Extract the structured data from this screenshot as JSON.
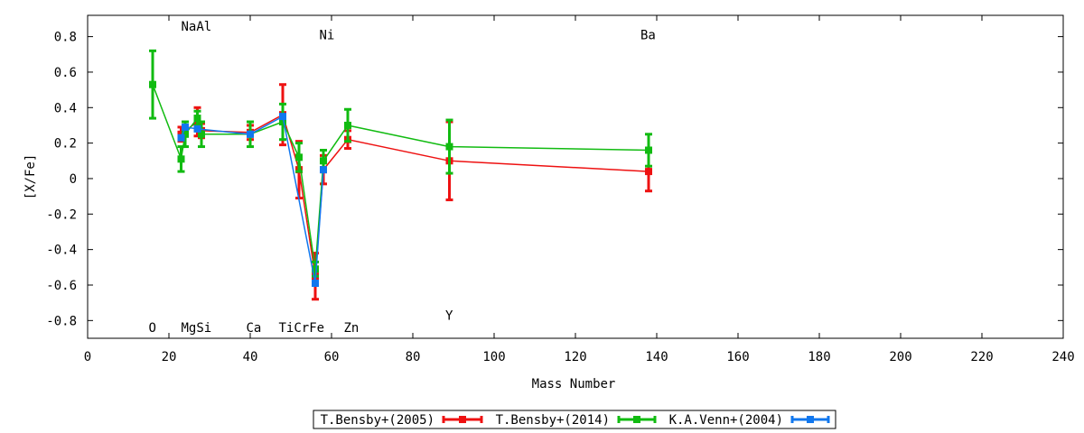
{
  "chart_data": {
    "type": "line",
    "xlabel": "Mass Number",
    "ylabel": "[X/Fe]",
    "xlim": [
      0,
      240
    ],
    "ylim": [
      -0.9,
      0.92
    ],
    "xticks": [
      0,
      20,
      40,
      60,
      80,
      100,
      120,
      140,
      160,
      180,
      200,
      220,
      240
    ],
    "yticks": [
      -0.8,
      -0.6,
      -0.4,
      -0.2,
      0,
      0.2,
      0.4,
      0.6,
      0.8
    ],
    "grid": false,
    "legend_position": "bottom-center",
    "series": [
      {
        "name": "T.Bensby+(2005)",
        "color": "#ee1111",
        "points": [
          {
            "x": 23,
            "y": 0.25,
            "err": 0.04
          },
          {
            "x": 24,
            "y": 0.27,
            "err": 0.03
          },
          {
            "x": 27,
            "y": 0.32,
            "err": 0.08
          },
          {
            "x": 28,
            "y": 0.27,
            "err": 0.04
          },
          {
            "x": 40,
            "y": 0.26,
            "err": 0.04
          },
          {
            "x": 48,
            "y": 0.36,
            "err": 0.17
          },
          {
            "x": 52,
            "y": 0.05,
            "err": 0.16
          },
          {
            "x": 56,
            "y": -0.55,
            "err": 0.13
          },
          {
            "x": 58,
            "y": 0.05,
            "err": 0.08
          },
          {
            "x": 64,
            "y": 0.22,
            "err": 0.05
          },
          {
            "x": 89,
            "y": 0.1,
            "err": 0.22
          },
          {
            "x": 138,
            "y": 0.04,
            "err": 0.11
          }
        ]
      },
      {
        "name": "T.Bensby+(2014)",
        "color": "#11bb11",
        "points": [
          {
            "x": 16,
            "y": 0.53,
            "err": 0.19
          },
          {
            "x": 23,
            "y": 0.11,
            "err": 0.07
          },
          {
            "x": 24,
            "y": 0.25,
            "err": 0.07
          },
          {
            "x": 27,
            "y": 0.34,
            "err": 0.04
          },
          {
            "x": 28,
            "y": 0.25,
            "err": 0.07
          },
          {
            "x": 40,
            "y": 0.25,
            "err": 0.07
          },
          {
            "x": 48,
            "y": 0.32,
            "err": 0.1
          },
          {
            "x": 52,
            "y": 0.12,
            "err": 0.08
          },
          {
            "x": 56,
            "y": -0.51,
            "err": 0.04
          },
          {
            "x": 58,
            "y": 0.1,
            "err": 0.06
          },
          {
            "x": 64,
            "y": 0.3,
            "err": 0.09
          },
          {
            "x": 89,
            "y": 0.18,
            "err": 0.15
          },
          {
            "x": 138,
            "y": 0.16,
            "err": 0.09
          }
        ]
      },
      {
        "name": "K.A.Venn+(2004)",
        "color": "#1177ee",
        "points": [
          {
            "x": 23,
            "y": 0.23,
            "err": 0
          },
          {
            "x": 24,
            "y": 0.29,
            "err": 0
          },
          {
            "x": 27,
            "y": 0.28,
            "err": 0
          },
          {
            "x": 40,
            "y": 0.25,
            "err": 0
          },
          {
            "x": 48,
            "y": 0.35,
            "err": 0
          },
          {
            "x": 56,
            "y": -0.59,
            "err": 0
          },
          {
            "x": 58,
            "y": 0.05,
            "err": 0
          }
        ]
      }
    ],
    "element_labels": [
      {
        "text": "NaAl",
        "x": 23,
        "y": 0.86
      },
      {
        "text": "Ni",
        "x": 57,
        "y": 0.81
      },
      {
        "text": "Ba",
        "x": 136,
        "y": 0.81
      },
      {
        "text": "O",
        "x": 15,
        "y": -0.84
      },
      {
        "text": "MgSi",
        "x": 23,
        "y": -0.84
      },
      {
        "text": "Ca",
        "x": 39,
        "y": -0.84
      },
      {
        "text": "TiCrFe",
        "x": 47,
        "y": -0.84
      },
      {
        "text": "Zn",
        "x": 63,
        "y": -0.84
      },
      {
        "text": "Y",
        "x": 88,
        "y": -0.77
      }
    ]
  }
}
